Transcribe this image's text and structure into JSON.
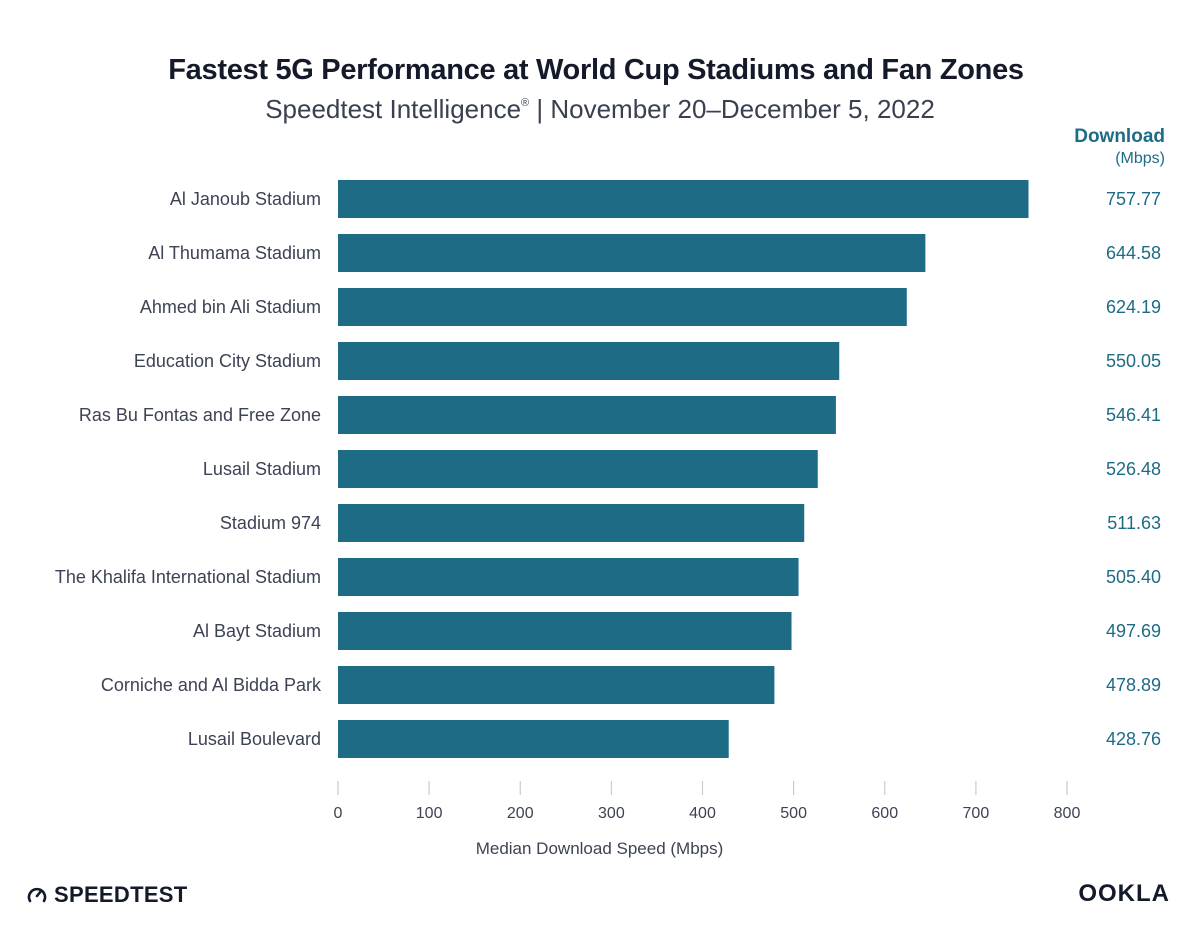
{
  "header": {
    "title": "Fastest 5G Performance at World Cup Stadiums and Fan Zones",
    "subtitle_main": "Speedtest Intelligence",
    "subtitle_reg": "®",
    "subtitle_rest": " | November 20–December 5, 2022",
    "col_title": "Download",
    "col_unit": "(Mbps)"
  },
  "footer": {
    "left_brand": "SPEEDTEST",
    "right_brand": "OOKLA"
  },
  "colors": {
    "bar": "#1e6b86",
    "value_text": "#1e6b86",
    "label_text": "#3d4354",
    "axis": "#c9ccd2"
  },
  "icons": {
    "speedtest_logo": "speedometer-icon"
  },
  "chart_data": {
    "type": "bar",
    "orientation": "horizontal",
    "categories": [
      "Al Janoub Stadium",
      "Al Thumama Stadium",
      "Ahmed bin Ali Stadium",
      "Education City Stadium",
      "Ras Bu Fontas and Free Zone",
      "Lusail Stadium",
      "Stadium 974",
      "The Khalifa International Stadium",
      "Al Bayt Stadium",
      "Corniche and Al Bidda Park",
      "Lusail Boulevard"
    ],
    "values": [
      757.77,
      644.58,
      624.19,
      550.05,
      546.41,
      526.48,
      511.63,
      505.4,
      497.69,
      478.89,
      428.76
    ],
    "value_labels": [
      "757.77",
      "644.58",
      "624.19",
      "550.05",
      "546.41",
      "526.48",
      "511.63",
      "505.40",
      "497.69",
      "478.89",
      "428.76"
    ],
    "xlabel": "Median Download Speed (Mbps)",
    "xlim": [
      0,
      800
    ],
    "xticks": [
      0,
      100,
      200,
      300,
      400,
      500,
      600,
      700,
      800
    ],
    "grid": false
  }
}
